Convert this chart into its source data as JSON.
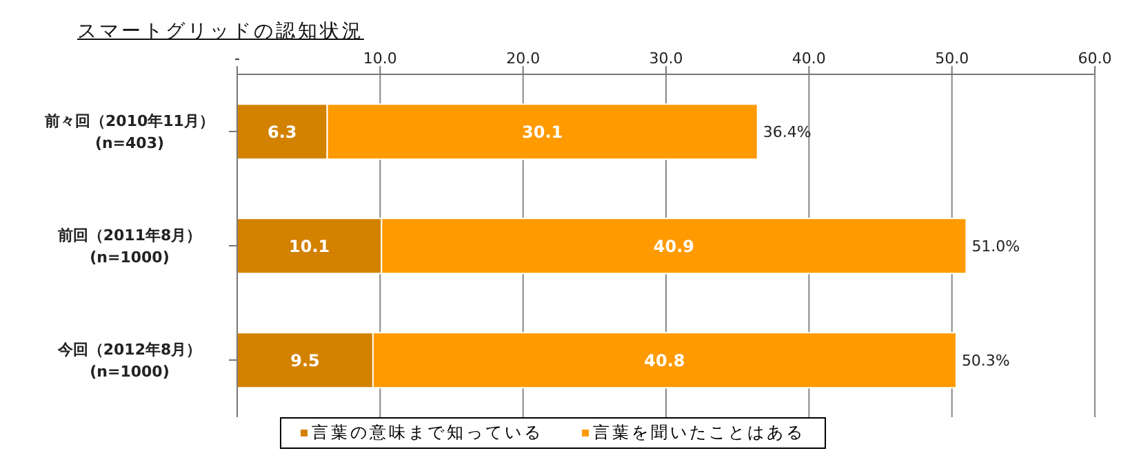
{
  "chart_data": {
    "type": "bar",
    "orientation": "horizontal",
    "stacked": true,
    "title": "スマートグリッドの認知状況",
    "categories": [
      "前々回（2010年11月）\n(n=403)",
      "前回（2011年8月）\n(n=1000)",
      "今回（2012年8月）\n(n=1000)"
    ],
    "series": [
      {
        "name": "言葉の意味まで知っている",
        "color": "#d38200",
        "values": [
          6.3,
          10.1,
          9.5
        ]
      },
      {
        "name": "言葉を聞いたことはある",
        "color": "#ff9a00",
        "values": [
          30.1,
          40.9,
          40.8
        ]
      }
    ],
    "totals": [
      "36.4%",
      "51.0%",
      "50.3%"
    ],
    "data_labels": true,
    "xlim": [
      0,
      60
    ],
    "xticks": [
      {
        "value": 0,
        "label": "-"
      },
      {
        "value": 10,
        "label": "10.0"
      },
      {
        "value": 20,
        "label": "20.0"
      },
      {
        "value": 30,
        "label": "30.0"
      },
      {
        "value": 40,
        "label": "40.0"
      },
      {
        "value": 50,
        "label": "50.0"
      },
      {
        "value": 60,
        "label": "60.0"
      }
    ],
    "grid": "x",
    "legend": "bottom"
  }
}
